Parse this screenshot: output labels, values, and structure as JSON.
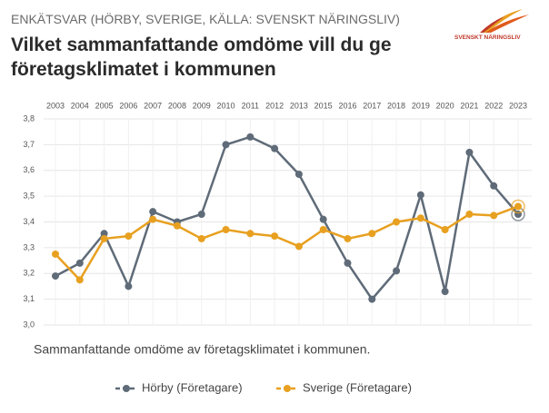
{
  "logo": "SVENSKT NÄRINGSLIV",
  "chart_data": {
    "type": "line",
    "header": "ENKÄTSVAR (HÖRBY, SVERIGE, KÄLLA: SVENSKT NÄRINGSLIV)",
    "title": "Vilket sammanfattande omdöme vill du ge företagsklimatet i kommunen",
    "note": "Sammanfattande omdöme av företagsklimatet i kommunen.",
    "categories": [
      "2003",
      "2004",
      "2005",
      "2006",
      "2007",
      "2008",
      "2009",
      "2010",
      "2011",
      "2012",
      "2013",
      "2015",
      "2016",
      "2017",
      "2018",
      "2019",
      "2020",
      "2021",
      "2022",
      "2023"
    ],
    "series": [
      {
        "name": "Hörby (Företagare)",
        "color": "#5f6b78",
        "values": [
          3.19,
          3.24,
          3.355,
          3.15,
          3.44,
          3.4,
          3.43,
          3.7,
          3.73,
          3.685,
          3.585,
          3.41,
          3.24,
          3.1,
          3.21,
          3.505,
          3.13,
          3.67,
          3.54,
          3.43
        ]
      },
      {
        "name": "Sverige (Företagare)",
        "color": "#e8a020",
        "values": [
          3.275,
          3.175,
          3.335,
          3.345,
          3.41,
          3.385,
          3.335,
          3.37,
          3.355,
          3.345,
          3.305,
          3.37,
          3.335,
          3.355,
          3.4,
          3.415,
          3.37,
          3.43,
          3.425,
          3.46
        ]
      }
    ],
    "ylim": [
      3.0,
      3.8
    ],
    "yticks": [
      {
        "value": 3.0,
        "label": "3,0"
      },
      {
        "value": 3.1,
        "label": "3,1"
      },
      {
        "value": 3.2,
        "label": "3,2"
      },
      {
        "value": 3.3,
        "label": "3,3"
      },
      {
        "value": 3.4,
        "label": "3,4"
      },
      {
        "value": 3.5,
        "label": "3,5"
      },
      {
        "value": 3.6,
        "label": "3,6"
      },
      {
        "value": 3.7,
        "label": "3,7"
      },
      {
        "value": 3.8,
        "label": "3,8"
      }
    ],
    "grid": true,
    "legend": "bottom"
  }
}
